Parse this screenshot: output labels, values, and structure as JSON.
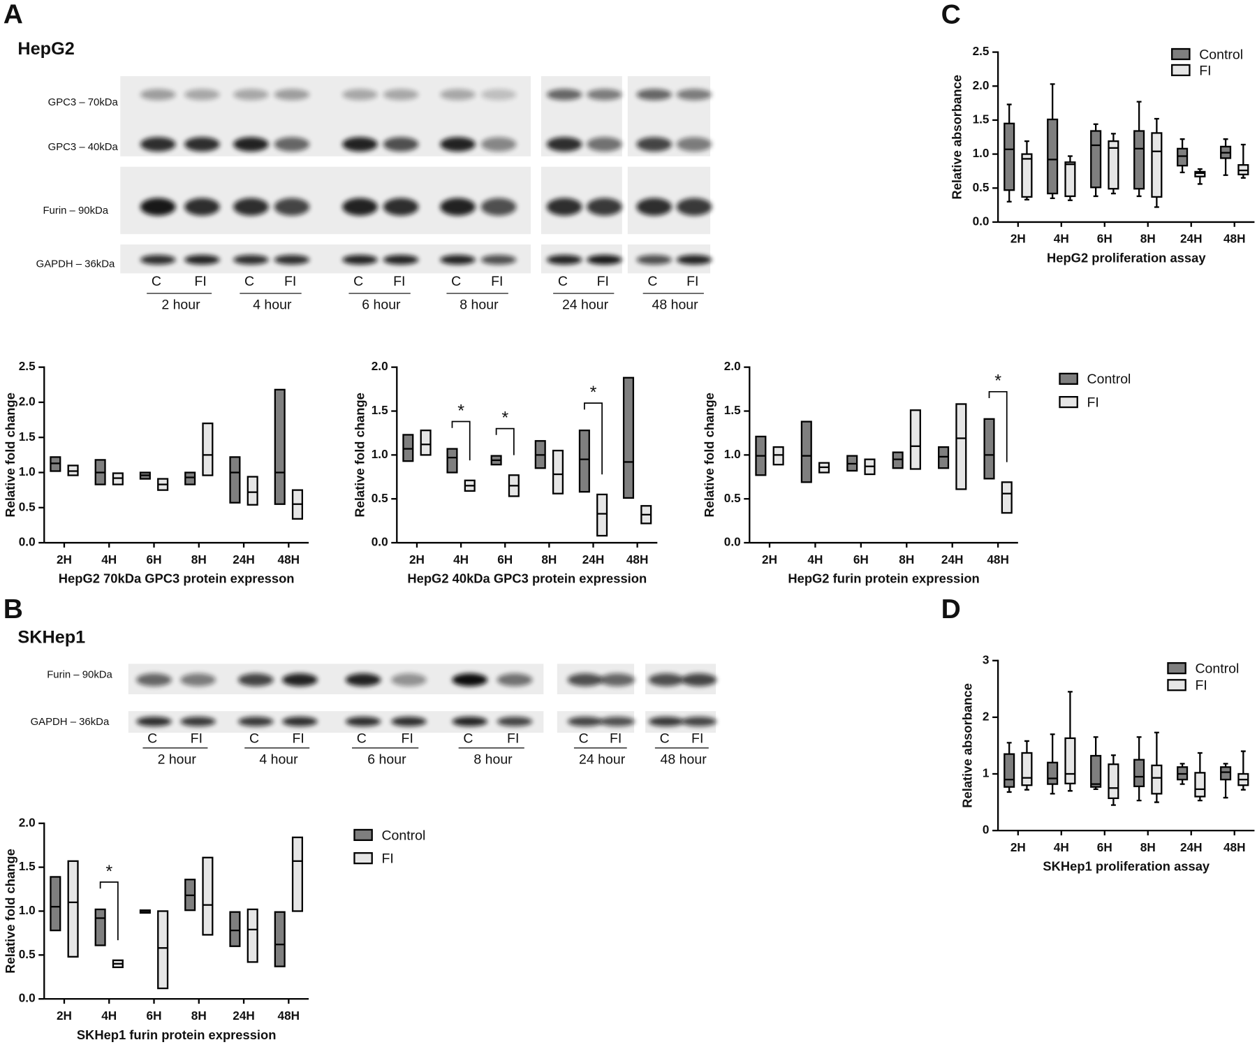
{
  "panel_labels": [
    "A",
    "B",
    "C",
    "D"
  ],
  "blots": {
    "A": {
      "cell_line": "HepG2",
      "rows": [
        "GPC3 – 70kDa",
        "GPC3 – 40kDa",
        "Furin – 90kDa",
        "GAPDH – 36kDa"
      ],
      "lanes": [
        "C",
        "FI"
      ],
      "times": [
        "2 hour",
        "4 hour",
        "6 hour",
        "8 hour",
        "24 hour",
        "48 hour"
      ]
    },
    "B": {
      "cell_line": "SKHep1",
      "rows": [
        "Furin – 90kDa",
        "GAPDH – 36kDa"
      ],
      "lanes": [
        "C",
        "FI"
      ],
      "times": [
        "2 hour",
        "4 hour",
        "6 hour",
        "8 hour",
        "24 hour",
        "48 hour"
      ]
    }
  },
  "chart_data": [
    {
      "type": "floating-bar",
      "xlabel": "HepG2 70kDa GPC3 protein expresson",
      "ylabel": "Relative fold change",
      "categories": [
        "2H",
        "4H",
        "6H",
        "8H",
        "24H",
        "48H"
      ],
      "series": [
        {
          "name": "Control",
          "color": "#7f7f7f",
          "low": [
            1.02,
            0.83,
            0.91,
            0.83,
            0.57,
            0.55
          ],
          "median": [
            1.13,
            1.0,
            0.96,
            0.93,
            1.0,
            1.0
          ],
          "high": [
            1.22,
            1.18,
            1.0,
            1.0,
            1.22,
            2.18
          ]
        },
        {
          "name": "FI",
          "color": "#e6e6e6",
          "low": [
            0.96,
            0.83,
            0.75,
            0.96,
            0.54,
            0.34
          ],
          "median": [
            1.02,
            0.92,
            0.83,
            1.25,
            0.72,
            0.55
          ],
          "high": [
            1.1,
            0.99,
            0.91,
            1.7,
            0.94,
            0.75
          ]
        }
      ],
      "ylim": [
        0,
        2.5
      ],
      "yticks": [
        {
          "value": 0,
          "label": "0.0"
        },
        0.5,
        {
          "value": 1,
          "label": "1.0"
        },
        1.5,
        {
          "value": 2,
          "label": "2.0"
        },
        2.5
      ]
    },
    {
      "type": "floating-bar",
      "xlabel": "HepG2 40kDa GPC3 protein expression",
      "ylabel": "Relative fold change",
      "categories": [
        "2H",
        "4H",
        "6H",
        "8H",
        "24H",
        "48H"
      ],
      "series": [
        {
          "name": "Control",
          "color": "#7f7f7f",
          "low": [
            0.93,
            0.8,
            0.89,
            0.85,
            0.58,
            0.51
          ],
          "median": [
            1.07,
            0.97,
            0.94,
            1.0,
            0.95,
            0.92
          ],
          "high": [
            1.23,
            1.07,
            0.99,
            1.16,
            1.28,
            1.88
          ]
        },
        {
          "name": "FI",
          "color": "#e6e6e6",
          "low": [
            1.0,
            0.59,
            0.53,
            0.56,
            0.08,
            0.22
          ],
          "median": [
            1.12,
            0.65,
            0.65,
            0.78,
            0.33,
            0.32
          ],
          "high": [
            1.28,
            0.71,
            0.77,
            1.05,
            0.55,
            0.42
          ]
        }
      ],
      "significance": [
        null,
        "*",
        "*",
        null,
        "*",
        null
      ],
      "ylim": [
        0,
        2
      ],
      "yticks": [
        {
          "value": 0,
          "label": "0.0"
        },
        0.5,
        {
          "value": 1,
          "label": "1.0"
        },
        1.5,
        {
          "value": 2,
          "label": "2.0"
        }
      ]
    },
    {
      "type": "floating-bar",
      "xlabel": "HepG2 furin protein expression",
      "ylabel": "Relative fold change",
      "categories": [
        "2H",
        "4H",
        "6H",
        "8H",
        "24H",
        "48H"
      ],
      "series": [
        {
          "name": "Control",
          "color": "#7f7f7f",
          "low": [
            0.77,
            0.69,
            0.82,
            0.85,
            0.85,
            0.73
          ],
          "median": [
            0.99,
            0.99,
            0.9,
            0.95,
            0.98,
            1.0
          ],
          "high": [
            1.21,
            1.38,
            0.99,
            1.03,
            1.09,
            1.41
          ]
        },
        {
          "name": "FI",
          "color": "#e6e6e6",
          "low": [
            0.89,
            0.8,
            0.78,
            0.84,
            0.61,
            0.34
          ],
          "median": [
            1.0,
            0.86,
            0.87,
            1.1,
            1.19,
            0.56
          ],
          "high": [
            1.09,
            0.91,
            0.95,
            1.51,
            1.58,
            0.69
          ]
        }
      ],
      "significance": [
        null,
        null,
        null,
        null,
        null,
        "*"
      ],
      "legend": "right",
      "ylim": [
        0,
        2
      ],
      "yticks": [
        {
          "value": 0,
          "label": "0.0"
        },
        0.5,
        {
          "value": 1,
          "label": "1.0"
        },
        1.5,
        {
          "value": 2,
          "label": "2.0"
        }
      ]
    },
    {
      "type": "floating-bar",
      "xlabel": "SKHep1 furin protein expression",
      "ylabel": "Relative fold change",
      "categories": [
        "2H",
        "4H",
        "6H",
        "8H",
        "24H",
        "48H"
      ],
      "series": [
        {
          "name": "Control",
          "color": "#7f7f7f",
          "low": [
            0.78,
            0.61,
            0.98,
            1.01,
            0.6,
            0.37
          ],
          "median": [
            1.05,
            0.92,
            1.0,
            1.18,
            0.78,
            0.62
          ],
          "high": [
            1.39,
            1.02,
            1.01,
            1.36,
            0.99,
            0.99
          ]
        },
        {
          "name": "FI",
          "color": "#e6e6e6",
          "low": [
            0.48,
            0.36,
            0.12,
            0.73,
            0.42,
            1.0
          ],
          "median": [
            1.1,
            0.4,
            0.58,
            1.07,
            0.79,
            1.57
          ],
          "high": [
            1.57,
            0.44,
            1.0,
            1.61,
            1.02,
            1.84
          ]
        }
      ],
      "significance": [
        null,
        "*",
        null,
        null,
        null,
        null
      ],
      "legend": "right",
      "ylim": [
        0,
        2
      ],
      "yticks": [
        {
          "value": 0,
          "label": "0.0"
        },
        0.5,
        {
          "value": 1,
          "label": "1.0"
        },
        1.5,
        {
          "value": 2,
          "label": "2.0"
        }
      ]
    },
    {
      "type": "box",
      "xlabel": "HepG2 proliferation assay",
      "ylabel": "Relative absorbance",
      "categories": [
        "2H",
        "4H",
        "6H",
        "8H",
        "24H",
        "48H"
      ],
      "series": [
        {
          "name": "Control",
          "color": "#7f7f7f",
          "min": [
            0.3,
            0.35,
            0.38,
            0.38,
            0.73,
            0.69
          ],
          "q1": [
            0.47,
            0.42,
            0.51,
            0.49,
            0.83,
            0.94
          ],
          "median": [
            1.07,
            0.92,
            1.13,
            1.08,
            0.97,
            1.02
          ],
          "q3": [
            1.45,
            1.51,
            1.34,
            1.34,
            1.08,
            1.11
          ],
          "max": [
            1.73,
            2.03,
            1.44,
            1.77,
            1.22,
            1.22
          ]
        },
        {
          "name": "FI",
          "color": "#e6e6e6",
          "min": [
            0.33,
            0.32,
            0.42,
            0.22,
            0.56,
            0.65
          ],
          "q1": [
            0.37,
            0.38,
            0.49,
            0.37,
            0.67,
            0.7
          ],
          "median": [
            0.93,
            0.85,
            1.09,
            1.04,
            0.72,
            0.76
          ],
          "q3": [
            1.0,
            0.88,
            1.19,
            1.31,
            0.74,
            0.84
          ],
          "max": [
            1.19,
            0.97,
            1.3,
            1.52,
            0.78,
            1.14
          ]
        }
      ],
      "legend": "upper right",
      "ylim": [
        0,
        2.5
      ],
      "yticks": [
        {
          "value": 0,
          "label": "0.0"
        },
        0.5,
        {
          "value": 1,
          "label": "1.0"
        },
        1.5,
        {
          "value": 2,
          "label": "2.0"
        },
        2.5
      ]
    },
    {
      "type": "box",
      "xlabel": "SKHep1 proliferation assay",
      "ylabel": "Relative absorbance",
      "categories": [
        "2H",
        "4H",
        "6H",
        "8H",
        "24H",
        "48H"
      ],
      "series": [
        {
          "name": "Control",
          "color": "#7f7f7f",
          "min": [
            0.68,
            0.65,
            0.73,
            0.53,
            0.82,
            0.58
          ],
          "q1": [
            0.77,
            0.82,
            0.77,
            0.78,
            0.9,
            0.9
          ],
          "median": [
            0.9,
            0.92,
            0.82,
            0.95,
            1.0,
            1.03
          ],
          "q3": [
            1.35,
            1.2,
            1.32,
            1.25,
            1.12,
            1.12
          ],
          "max": [
            1.55,
            1.7,
            1.65,
            1.65,
            1.18,
            1.18
          ]
        },
        {
          "name": "FI",
          "color": "#e6e6e6",
          "min": [
            0.72,
            0.7,
            0.45,
            0.5,
            0.53,
            0.72
          ],
          "q1": [
            0.8,
            0.83,
            0.57,
            0.65,
            0.6,
            0.8
          ],
          "median": [
            0.93,
            1.0,
            0.75,
            0.93,
            0.73,
            0.9
          ],
          "q3": [
            1.37,
            1.63,
            1.17,
            1.15,
            1.02,
            1.0
          ],
          "max": [
            1.58,
            2.45,
            1.33,
            1.73,
            1.37,
            1.4
          ]
        }
      ],
      "legend": "upper right",
      "ylim": [
        0,
        3
      ],
      "yticks": [
        0,
        1,
        2,
        3
      ]
    }
  ]
}
